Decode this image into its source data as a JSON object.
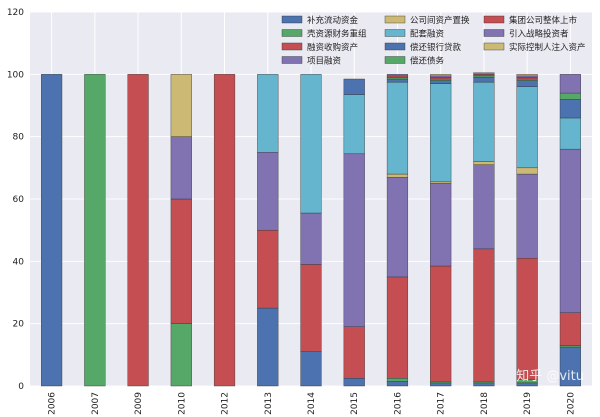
{
  "chart_data": {
    "type": "bar",
    "stacked": true,
    "categories": [
      "2006",
      "2007",
      "2009",
      "2010",
      "2012",
      "2013",
      "2014",
      "2015",
      "2016",
      "2017",
      "2018",
      "2019",
      "2020"
    ],
    "ylim": [
      0,
      120
    ],
    "yticks": [
      0,
      20,
      40,
      60,
      80,
      100,
      120
    ],
    "grid": true,
    "legend_position": "top-right",
    "series": [
      {
        "name": "补充流动资金",
        "color": "#4c72b0",
        "values": [
          100,
          0,
          0,
          0,
          0,
          25,
          11,
          2.5,
          1.5,
          1,
          1,
          1,
          12.5
        ]
      },
      {
        "name": "壳资源财务重组",
        "color": "#55a868",
        "values": [
          0,
          100,
          0,
          20,
          0,
          0,
          0,
          0,
          1,
          0.5,
          0.5,
          1,
          0.5
        ]
      },
      {
        "name": "融资收购资产",
        "color": "#c44e52",
        "values": [
          0,
          0,
          100,
          40,
          100,
          25,
          28,
          16.5,
          32.5,
          37,
          42.5,
          39,
          10.5
        ]
      },
      {
        "name": "项目融资",
        "color": "#8172b2",
        "values": [
          0,
          0,
          0,
          20,
          0,
          25,
          16.5,
          55.5,
          32,
          26.5,
          27,
          27,
          52.5
        ]
      },
      {
        "name": "公司间资产置换",
        "color": "#ccb974",
        "values": [
          0,
          0,
          0,
          20,
          0,
          0,
          0,
          0,
          1,
          0.5,
          1,
          2,
          0
        ]
      },
      {
        "name": "配套融资",
        "color": "#64b5cd",
        "values": [
          0,
          0,
          0,
          0,
          0,
          25,
          44.5,
          19,
          29.5,
          31.5,
          25.5,
          26,
          10
        ]
      },
      {
        "name": "偿还银行贷款",
        "color": "#4c72b0",
        "values": [
          0,
          0,
          0,
          0,
          0,
          0,
          0,
          5,
          1,
          1,
          1.5,
          2,
          6
        ]
      },
      {
        "name": "偿还债务",
        "color": "#55a868",
        "values": [
          0,
          0,
          0,
          0,
          0,
          0,
          0,
          0,
          0.5,
          0.5,
          0.5,
          0.5,
          2
        ]
      },
      {
        "name": "集团公司整体上市",
        "color": "#c44e52",
        "values": [
          0,
          0,
          0,
          0,
          0,
          0,
          0,
          0,
          0.5,
          0.5,
          0.5,
          0.5,
          0
        ]
      },
      {
        "name": "引入战略投资者",
        "color": "#8172b2",
        "values": [
          0,
          0,
          0,
          0,
          0,
          0,
          0,
          0,
          0.5,
          0.5,
          0.5,
          0.5,
          6
        ]
      },
      {
        "name": "实际控制人注入资产",
        "color": "#ccb974",
        "values": [
          0,
          0,
          0,
          0,
          0,
          0,
          0,
          0,
          0,
          0.5,
          0,
          0.5,
          0
        ]
      }
    ]
  },
  "style": {
    "plot_background": "#eaeaf2",
    "grid_color": "#ffffff",
    "bar_edge_color": "#333333"
  },
  "watermark": "知乎 @vitu"
}
